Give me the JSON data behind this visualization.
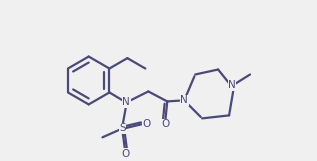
{
  "bg_color": "#f0f0f0",
  "line_color": "#4a4a7a",
  "line_width": 1.6,
  "font_size": 7.5,
  "figsize": [
    3.17,
    1.61
  ],
  "dpi": 100,
  "xlim": [
    -0.5,
    10.5
  ],
  "ylim": [
    -2.5,
    5.5
  ]
}
